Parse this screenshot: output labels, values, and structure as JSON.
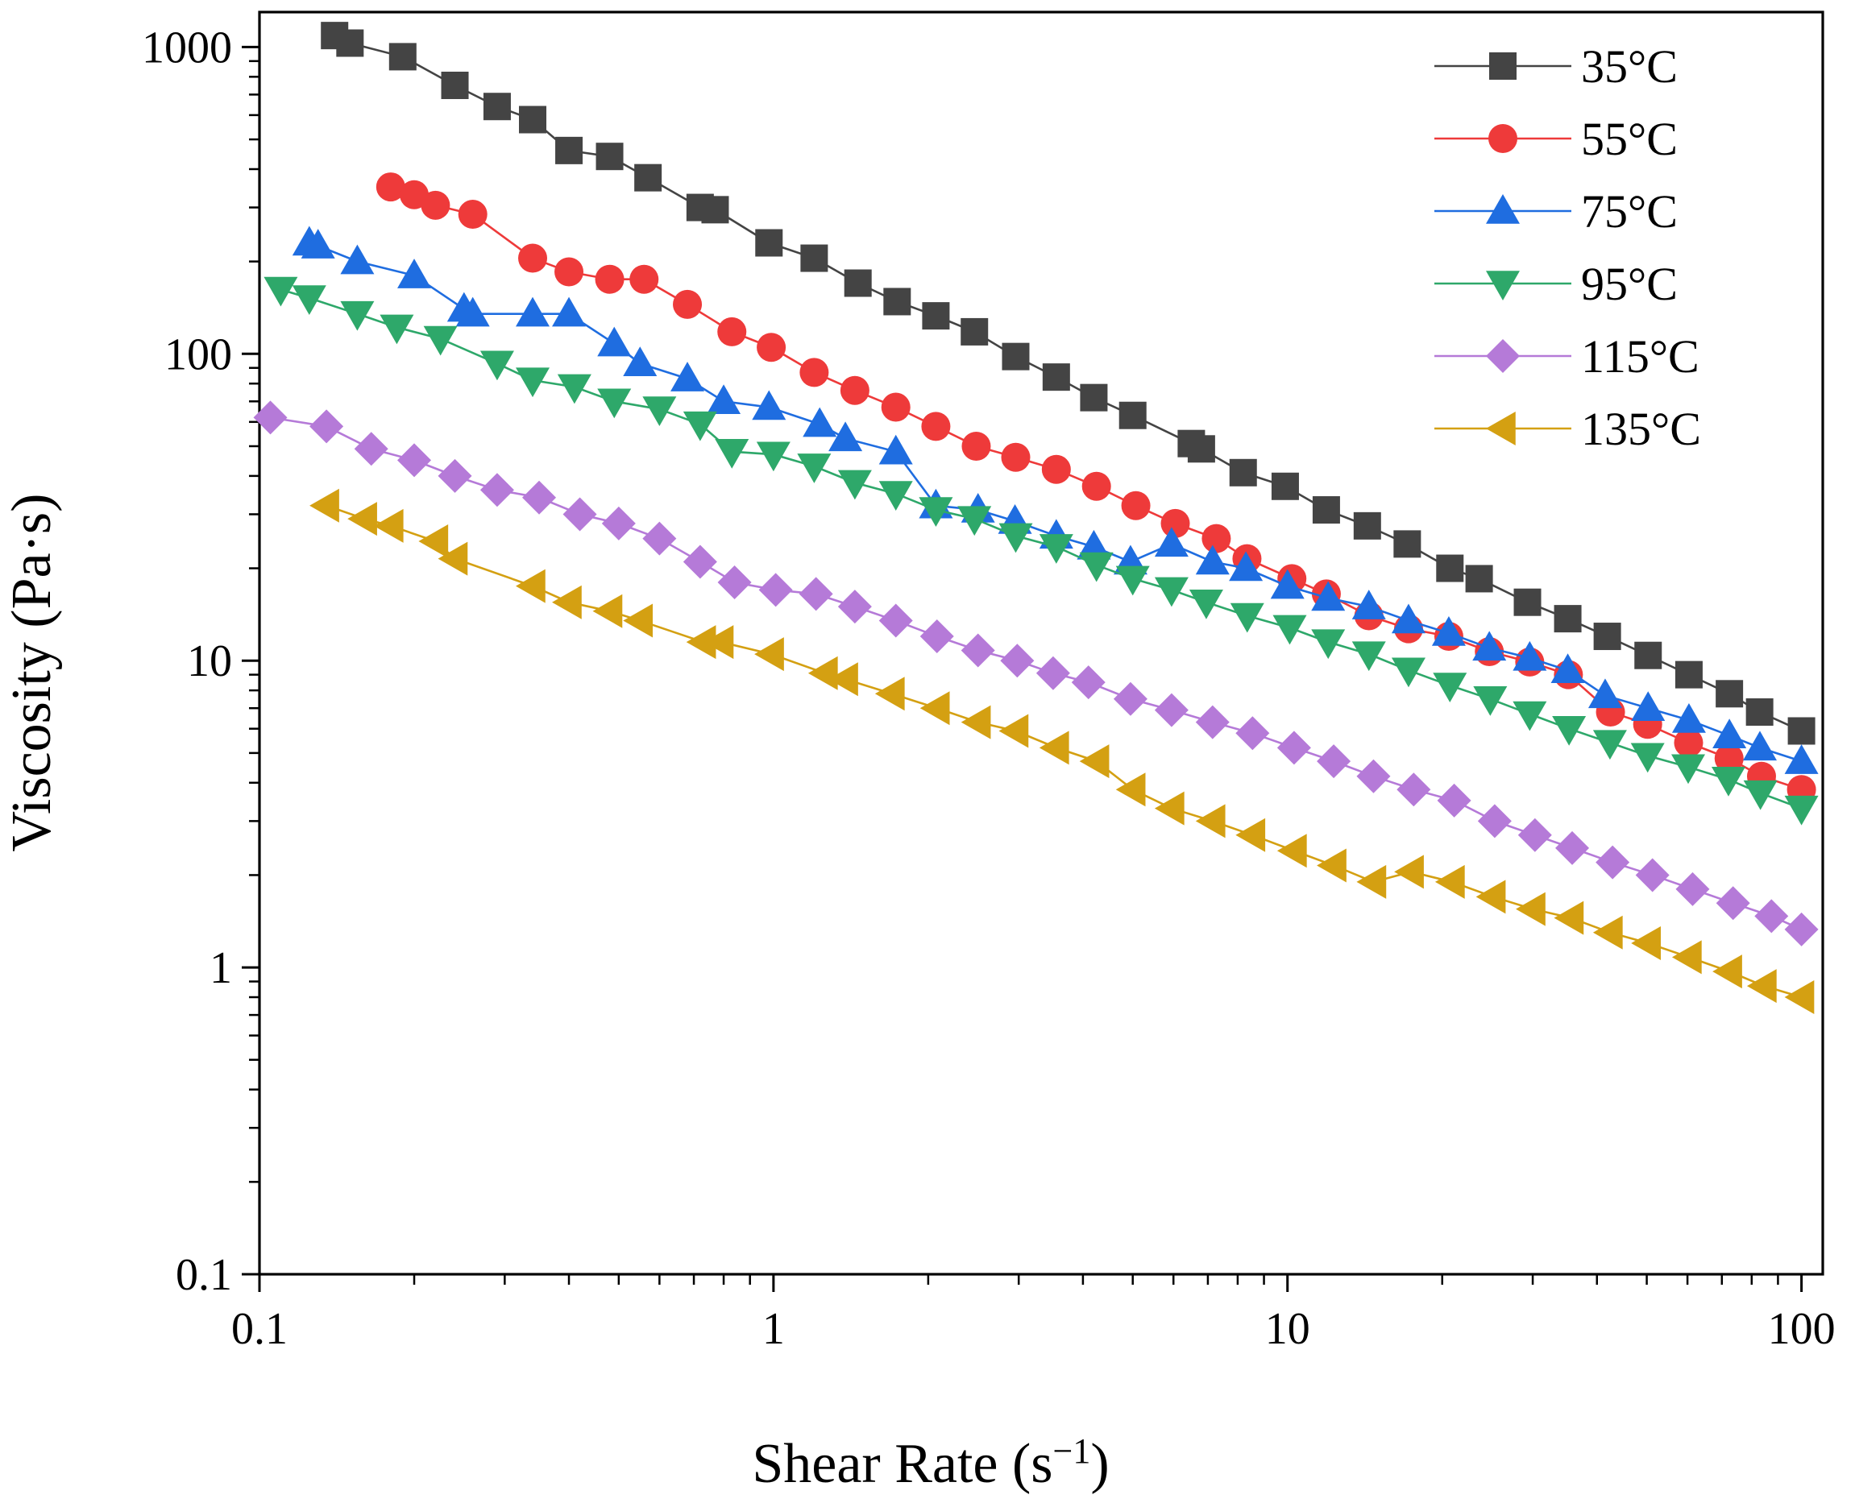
{
  "chart_data": {
    "type": "line",
    "title": "",
    "xlabel": "Shear Rate (s",
    "xlabel_superscript": "−1",
    "xlabel_suffix": ")",
    "ylabel": "Viscosity (Pa·s)",
    "xscale": "log",
    "yscale": "log",
    "xlim": [
      0.1,
      110
    ],
    "ylim": [
      0.1,
      1300
    ],
    "x_ticks": [
      {
        "value": 0.1,
        "label": "0.1"
      },
      {
        "value": 1,
        "label": "1"
      },
      {
        "value": 10,
        "label": "10"
      },
      {
        "value": 100,
        "label": "100"
      }
    ],
    "y_ticks": [
      {
        "value": 0.1,
        "label": "0.1"
      },
      {
        "value": 1,
        "label": "1"
      },
      {
        "value": 10,
        "label": "10"
      },
      {
        "value": 100,
        "label": "100"
      },
      {
        "value": 1000,
        "label": "1000"
      }
    ],
    "grid": false,
    "legend_position": "top-right",
    "series": [
      {
        "name": "35°C",
        "color": "#444444",
        "marker": "square",
        "x": [
          0.14,
          0.15,
          0.19,
          0.24,
          0.29,
          0.34,
          0.4,
          0.48,
          0.57,
          0.72,
          0.77,
          0.98,
          1.2,
          1.46,
          1.74,
          2.07,
          2.46,
          2.96,
          3.55,
          4.2,
          5.0,
          6.5,
          6.8,
          8.2,
          9.9,
          11.9,
          14.3,
          17.1,
          20.7,
          23.6,
          29.3,
          35.1,
          41.9,
          50.3,
          60.4,
          72.4,
          82.9,
          100
        ],
        "y": [
          1090,
          1030,
          930,
          750,
          640,
          580,
          460,
          440,
          375,
          300,
          295,
          230,
          205,
          170,
          148,
          133,
          118,
          98,
          84,
          72,
          63,
          51,
          49,
          41,
          37,
          31,
          27.5,
          24,
          20,
          18.5,
          15.5,
          13.7,
          12.0,
          10.4,
          9.0,
          7.8,
          6.8,
          5.9
        ]
      },
      {
        "name": "55°C",
        "color": "#ee3a3a",
        "marker": "circle",
        "x": [
          0.18,
          0.2,
          0.22,
          0.26,
          0.34,
          0.4,
          0.48,
          0.56,
          0.68,
          0.83,
          0.99,
          1.2,
          1.44,
          1.73,
          2.07,
          2.48,
          2.96,
          3.55,
          4.25,
          5.07,
          6.05,
          7.27,
          8.34,
          10.2,
          11.9,
          14.4,
          17.2,
          20.6,
          24.7,
          29.6,
          35.2,
          42.5,
          50.2,
          60.3,
          72.3,
          83.6,
          100
        ],
        "y": [
          350,
          330,
          305,
          285,
          205,
          185,
          175,
          175,
          145,
          118,
          105,
          87,
          76,
          67,
          58,
          50,
          46,
          42,
          37,
          32,
          28,
          25,
          21.5,
          18.5,
          16.5,
          14.0,
          12.7,
          12.0,
          10.7,
          9.9,
          9.0,
          6.8,
          6.2,
          5.4,
          4.8,
          4.2,
          3.8
        ]
      },
      {
        "name": "75°C",
        "color": "#1f6de0",
        "marker": "triangle-up",
        "x": [
          0.125,
          0.13,
          0.155,
          0.2,
          0.25,
          0.26,
          0.34,
          0.4,
          0.49,
          0.55,
          0.68,
          0.8,
          0.98,
          1.23,
          1.38,
          1.73,
          2.07,
          2.5,
          2.95,
          3.55,
          4.2,
          4.95,
          5.95,
          7.15,
          8.3,
          10.0,
          12.0,
          14.4,
          17.2,
          20.6,
          24.7,
          29.6,
          35.1,
          41.5,
          50.3,
          60.4,
          72.4,
          83.0,
          100
        ],
        "y": [
          230,
          225,
          200,
          180,
          140,
          135,
          135,
          135,
          108,
          93,
          83,
          70,
          67,
          59,
          53,
          48,
          32,
          31,
          28.5,
          25.5,
          23.5,
          21,
          24,
          21,
          20,
          17.5,
          16,
          15,
          13.5,
          12.3,
          11,
          10.2,
          9.3,
          7.7,
          7.0,
          6.4,
          5.7,
          5.2,
          4.7
        ]
      },
      {
        "name": "95°C",
        "color": "#2ea86a",
        "marker": "triangle-down",
        "x": [
          0.11,
          0.125,
          0.155,
          0.185,
          0.225,
          0.29,
          0.34,
          0.41,
          0.49,
          0.6,
          0.72,
          0.83,
          1.0,
          1.2,
          1.44,
          1.73,
          2.07,
          2.46,
          2.96,
          3.55,
          4.25,
          5.0,
          5.95,
          6.95,
          8.35,
          10.1,
          12.0,
          14.4,
          17.2,
          20.7,
          24.8,
          29.6,
          35.3,
          42.4,
          50.2,
          60.2,
          72.1,
          83.2,
          100
        ],
        "y": [
          162,
          152,
          135,
          122,
          112,
          93,
          82,
          78,
          70,
          66,
          59,
          48,
          47,
          43,
          38,
          35,
          31,
          29,
          25.5,
          23.5,
          20.5,
          18.5,
          17,
          15.5,
          14,
          12.8,
          11.5,
          10.5,
          9.3,
          8.3,
          7.5,
          6.7,
          6.0,
          5.4,
          4.9,
          4.5,
          4.1,
          3.7,
          3.3
        ]
      },
      {
        "name": "115°C",
        "color": "#b57ad8",
        "marker": "diamond",
        "x": [
          0.105,
          0.135,
          0.165,
          0.2,
          0.24,
          0.29,
          0.35,
          0.42,
          0.5,
          0.6,
          0.72,
          0.84,
          1.01,
          1.21,
          1.44,
          1.73,
          2.08,
          2.5,
          2.98,
          3.5,
          4.1,
          4.95,
          5.95,
          7.15,
          8.55,
          10.3,
          12.3,
          14.7,
          17.6,
          21.1,
          25.3,
          30.3,
          35.8,
          42.9,
          51.3,
          61.4,
          73.6,
          87.4,
          100
        ],
        "y": [
          62,
          58,
          49,
          45,
          40,
          36,
          34,
          30,
          28,
          25,
          21,
          18,
          17,
          16.5,
          15,
          13.5,
          12.0,
          10.8,
          10.0,
          9.1,
          8.5,
          7.5,
          6.9,
          6.3,
          5.8,
          5.2,
          4.7,
          4.2,
          3.8,
          3.5,
          3.0,
          2.7,
          2.45,
          2.2,
          2.0,
          1.8,
          1.62,
          1.47,
          1.33
        ]
      },
      {
        "name": "135°C",
        "color": "#d4a012",
        "marker": "triangle-left",
        "x": [
          0.135,
          0.16,
          0.18,
          0.22,
          0.24,
          0.34,
          0.4,
          0.48,
          0.55,
          0.73,
          0.79,
          0.99,
          1.26,
          1.38,
          1.7,
          2.08,
          2.5,
          2.96,
          3.55,
          4.25,
          5.0,
          5.95,
          7.15,
          8.55,
          10.3,
          12.3,
          14.7,
          17.4,
          20.9,
          25.1,
          30.0,
          35.6,
          42.4,
          50.3,
          60.4,
          72.4,
          84.5,
          100
        ],
        "y": [
          32,
          29,
          27.5,
          24.5,
          21.5,
          17.5,
          15.5,
          14.5,
          13.5,
          11.5,
          11.5,
          10.5,
          9.1,
          8.7,
          7.8,
          7.0,
          6.3,
          5.9,
          5.2,
          4.7,
          3.8,
          3.3,
          3.0,
          2.7,
          2.4,
          2.15,
          1.9,
          2.05,
          1.9,
          1.7,
          1.55,
          1.45,
          1.3,
          1.2,
          1.08,
          0.97,
          0.87,
          0.8
        ]
      }
    ]
  }
}
